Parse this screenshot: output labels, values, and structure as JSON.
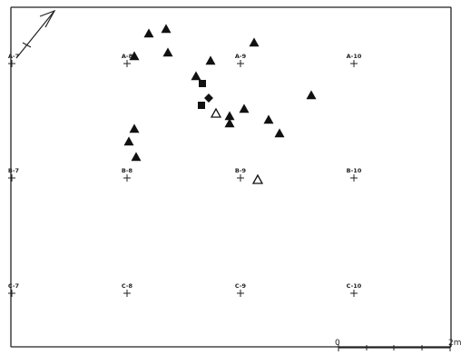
{
  "grid_points": [
    {
      "label": "A-7",
      "row": "A",
      "col": 7
    },
    {
      "label": "A-8",
      "row": "A",
      "col": 8
    },
    {
      "label": "A-9",
      "row": "A",
      "col": 9
    },
    {
      "label": "A-10",
      "row": "A",
      "col": 10
    },
    {
      "label": "B-7",
      "row": "B",
      "col": 7
    },
    {
      "label": "B-8",
      "row": "B",
      "col": 8
    },
    {
      "label": "B-9",
      "row": "B",
      "col": 9
    },
    {
      "label": "B-10",
      "row": "B",
      "col": 10
    },
    {
      "label": "C-7",
      "row": "C",
      "col": 7
    },
    {
      "label": "C-8",
      "row": "C",
      "col": 8
    },
    {
      "label": "C-9",
      "row": "C",
      "col": 9
    },
    {
      "label": "C-10",
      "row": "C",
      "col": 10
    }
  ],
  "scale": {
    "start_label": "0",
    "end_label": "2m"
  },
  "symbol_legend": {
    "filled-triangle": "filled triangle",
    "open-triangle": "open triangle",
    "filled-square": "filled square",
    "filled-diamond": "filled diamond"
  },
  "colors": {
    "ink": "#111111",
    "paper": "#ffffff"
  }
}
